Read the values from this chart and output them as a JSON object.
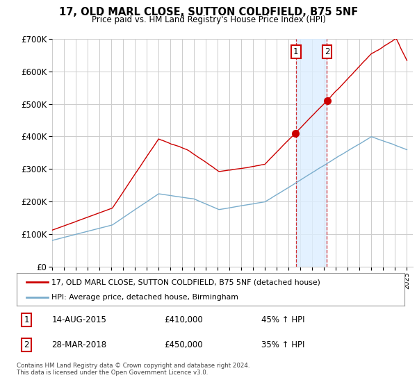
{
  "title": "17, OLD MARL CLOSE, SUTTON COLDFIELD, B75 5NF",
  "subtitle": "Price paid vs. HM Land Registry's House Price Index (HPI)",
  "legend_line1": "17, OLD MARL CLOSE, SUTTON COLDFIELD, B75 5NF (detached house)",
  "legend_line2": "HPI: Average price, detached house, Birmingham",
  "sale1_date": "14-AUG-2015",
  "sale1_price": "£410,000",
  "sale1_hpi": "45% ↑ HPI",
  "sale1_year": 2015.62,
  "sale1_value": 410000,
  "sale2_date": "28-MAR-2018",
  "sale2_price": "£450,000",
  "sale2_hpi": "35% ↑ HPI",
  "sale2_year": 2018.24,
  "sale2_value": 450000,
  "red_color": "#cc0000",
  "blue_color": "#7aadcc",
  "shade_color": "#ddeeff",
  "grid_color": "#cccccc",
  "background_color": "#ffffff",
  "footer": "Contains HM Land Registry data © Crown copyright and database right 2024.\nThis data is licensed under the Open Government Licence v3.0.",
  "ylim": [
    0,
    700000
  ],
  "xlim_start": 1995,
  "xlim_end": 2025.5
}
